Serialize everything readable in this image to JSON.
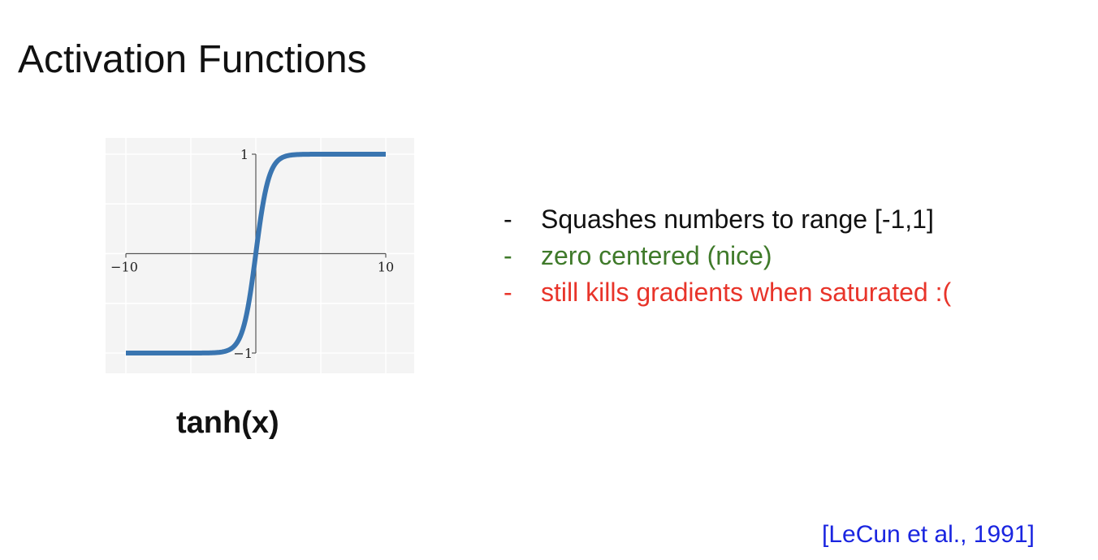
{
  "slide": {
    "title": "Activation Functions",
    "function_label": "tanh(x)",
    "bullets": [
      {
        "marker": "-",
        "text": "Squashes numbers to range [-1,1]",
        "color": "#111111"
      },
      {
        "marker": "-",
        "text": "zero centered (nice)",
        "color": "#3f7a2a"
      },
      {
        "marker": "-",
        "text": "still kills gradients when saturated :(",
        "color": "#e8342a"
      }
    ],
    "citation": "[LeCun et al., 1991]",
    "citation_color": "#1a25e0"
  },
  "chart_data": {
    "type": "line",
    "function": "tanh",
    "title": "",
    "xlabel": "",
    "ylabel": "",
    "xlim": [
      -10,
      10
    ],
    "ylim": [
      -1,
      1
    ],
    "x_ticks": [
      "−10",
      "10"
    ],
    "y_ticks": [
      "1",
      "−1"
    ],
    "grid": true,
    "line_color": "#3a75b0",
    "series": [
      {
        "x": [
          -10,
          -8,
          -6,
          -4,
          -3,
          -2,
          -1.5,
          -1,
          -0.5,
          0,
          0.5,
          1,
          1.5,
          2,
          3,
          4,
          6,
          8,
          10
        ],
        "y": [
          -1.0,
          -1.0,
          -1.0,
          -0.999,
          -0.995,
          -0.964,
          -0.905,
          -0.762,
          -0.462,
          0.0,
          0.462,
          0.762,
          0.905,
          0.964,
          0.995,
          0.999,
          1.0,
          1.0,
          1.0
        ]
      }
    ]
  }
}
